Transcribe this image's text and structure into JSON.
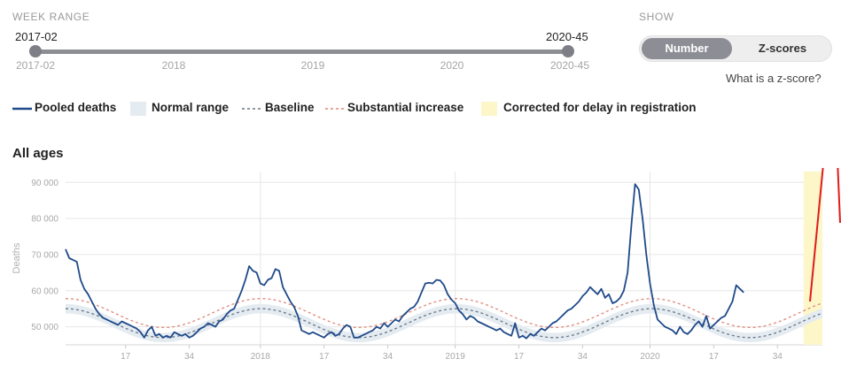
{
  "week_range": {
    "label": "WEEK RANGE",
    "start_value": "2017-02",
    "end_value": "2020-45",
    "ticks": [
      "2017-02",
      "2018",
      "2019",
      "2020",
      "2020-45"
    ]
  },
  "show": {
    "label": "SHOW",
    "options": [
      "Number",
      "Z-scores"
    ],
    "selected": "Number",
    "zscore_link": "What is a z-score?"
  },
  "legend": [
    {
      "label": "Pooled deaths",
      "style": "line",
      "color": "#1f4a8a"
    },
    {
      "label": "Normal range",
      "style": "band",
      "color": "#e4ebf1"
    },
    {
      "label": "Baseline",
      "style": "dotted",
      "color": "#6a7585"
    },
    {
      "label": "Substantial increase",
      "style": "dotted",
      "color": "#e0887a"
    },
    {
      "label": "Corrected for delay in registration",
      "style": "band",
      "color": "#fdf6c9"
    }
  ],
  "chart_data": {
    "type": "line",
    "title": "All ages",
    "ylabel": "Deaths",
    "xlabel": "",
    "ylim": [
      45000,
      93000
    ],
    "week_range": [
      1,
      203
    ],
    "y_ticks": [
      50000,
      60000,
      70000,
      80000,
      90000
    ],
    "y_tick_labels": [
      "50 000",
      "60 000",
      "70 000",
      "80 000",
      "90 000"
    ],
    "x_ticks": [
      {
        "week": 17,
        "label": "17"
      },
      {
        "week": 34,
        "label": "34"
      },
      {
        "week": 53,
        "label": "2018"
      },
      {
        "week": 70,
        "label": "17"
      },
      {
        "week": 87,
        "label": "34"
      },
      {
        "week": 105,
        "label": "2019"
      },
      {
        "week": 122,
        "label": "17"
      },
      {
        "week": 139,
        "label": "34"
      },
      {
        "week": 157,
        "label": "2020"
      },
      {
        "week": 174,
        "label": "17"
      },
      {
        "week": 191,
        "label": "34"
      }
    ],
    "grid": true,
    "correction_band": [
      198,
      203
    ],
    "colors": {
      "pooled": "#1f4a8a",
      "baseline": "#6a7585",
      "substantial": "#e0887a",
      "normal_range": "#e4ebf1",
      "correction": "#fdf6c9",
      "annotation": "#e01c1c"
    },
    "pooled_deaths": [
      [
        1,
        71500
      ],
      [
        2,
        69000
      ],
      [
        3,
        68500
      ],
      [
        4,
        68000
      ],
      [
        5,
        63000
      ],
      [
        6,
        60500
      ],
      [
        7,
        59000
      ],
      [
        8,
        57000
      ],
      [
        9,
        55000
      ],
      [
        10,
        53500
      ],
      [
        11,
        52500
      ],
      [
        12,
        52000
      ],
      [
        13,
        51500
      ],
      [
        14,
        51000
      ],
      [
        15,
        50500
      ],
      [
        16,
        51500
      ],
      [
        17,
        51000
      ],
      [
        18,
        50500
      ],
      [
        19,
        50000
      ],
      [
        20,
        49500
      ],
      [
        21,
        48500
      ],
      [
        22,
        47000
      ],
      [
        23,
        49000
      ],
      [
        24,
        50000
      ],
      [
        25,
        47500
      ],
      [
        26,
        48000
      ],
      [
        27,
        47000
      ],
      [
        28,
        47500
      ],
      [
        29,
        47000
      ],
      [
        30,
        48500
      ],
      [
        31,
        48000
      ],
      [
        32,
        47500
      ],
      [
        33,
        48000
      ],
      [
        34,
        47000
      ],
      [
        35,
        47500
      ],
      [
        36,
        48500
      ],
      [
        37,
        49500
      ],
      [
        38,
        50000
      ],
      [
        39,
        51000
      ],
      [
        40,
        50500
      ],
      [
        41,
        50000
      ],
      [
        42,
        51500
      ],
      [
        43,
        52000
      ],
      [
        44,
        53500
      ],
      [
        45,
        54500
      ],
      [
        46,
        55000
      ],
      [
        47,
        57500
      ],
      [
        48,
        60000
      ],
      [
        49,
        63000
      ],
      [
        50,
        66800
      ],
      [
        51,
        65500
      ],
      [
        52,
        65000
      ],
      [
        53,
        62000
      ],
      [
        54,
        61500
      ],
      [
        55,
        63000
      ],
      [
        56,
        63500
      ],
      [
        57,
        66000
      ],
      [
        58,
        65500
      ],
      [
        59,
        61000
      ],
      [
        60,
        59000
      ],
      [
        61,
        57000
      ],
      [
        62,
        55500
      ],
      [
        63,
        53000
      ],
      [
        64,
        49000
      ],
      [
        65,
        48500
      ],
      [
        66,
        48000
      ],
      [
        67,
        48500
      ],
      [
        68,
        48000
      ],
      [
        69,
        47500
      ],
      [
        70,
        47000
      ],
      [
        71,
        48000
      ],
      [
        72,
        48500
      ],
      [
        73,
        47500
      ],
      [
        74,
        48000
      ],
      [
        75,
        49500
      ],
      [
        76,
        50500
      ],
      [
        77,
        50000
      ],
      [
        78,
        47000
      ],
      [
        79,
        47000
      ],
      [
        80,
        47500
      ],
      [
        81,
        48000
      ],
      [
        82,
        48500
      ],
      [
        83,
        49000
      ],
      [
        84,
        50000
      ],
      [
        85,
        49500
      ],
      [
        86,
        51000
      ],
      [
        87,
        50000
      ],
      [
        88,
        51000
      ],
      [
        89,
        52000
      ],
      [
        90,
        51500
      ],
      [
        91,
        53000
      ],
      [
        92,
        54000
      ],
      [
        93,
        55000
      ],
      [
        94,
        55500
      ],
      [
        95,
        57000
      ],
      [
        96,
        59500
      ],
      [
        97,
        62000
      ],
      [
        98,
        62200
      ],
      [
        99,
        62000
      ],
      [
        100,
        63000
      ],
      [
        101,
        62800
      ],
      [
        102,
        61500
      ],
      [
        103,
        59000
      ],
      [
        104,
        57500
      ],
      [
        105,
        56500
      ],
      [
        106,
        54500
      ],
      [
        107,
        53500
      ],
      [
        108,
        52000
      ],
      [
        109,
        53000
      ],
      [
        110,
        52500
      ],
      [
        111,
        51500
      ],
      [
        112,
        51000
      ],
      [
        113,
        50500
      ],
      [
        114,
        50000
      ],
      [
        115,
        49500
      ],
      [
        116,
        49000
      ],
      [
        117,
        49500
      ],
      [
        118,
        48500
      ],
      [
        119,
        48000
      ],
      [
        120,
        47500
      ],
      [
        121,
        51000
      ],
      [
        122,
        47000
      ],
      [
        123,
        47500
      ],
      [
        124,
        46800
      ],
      [
        125,
        48000
      ],
      [
        126,
        47500
      ],
      [
        127,
        48500
      ],
      [
        128,
        49500
      ],
      [
        129,
        49000
      ],
      [
        130,
        50000
      ],
      [
        131,
        51000
      ],
      [
        132,
        51500
      ],
      [
        133,
        52500
      ],
      [
        134,
        53500
      ],
      [
        135,
        54500
      ],
      [
        136,
        55000
      ],
      [
        137,
        56000
      ],
      [
        138,
        57000
      ],
      [
        139,
        58500
      ],
      [
        140,
        59500
      ],
      [
        141,
        61000
      ],
      [
        142,
        60000
      ],
      [
        143,
        59000
      ],
      [
        144,
        60500
      ],
      [
        145,
        58000
      ],
      [
        146,
        59000
      ],
      [
        147,
        56500
      ],
      [
        148,
        57000
      ],
      [
        149,
        58000
      ],
      [
        150,
        60000
      ],
      [
        151,
        65000
      ],
      [
        152,
        78000
      ],
      [
        153,
        89500
      ],
      [
        154,
        88000
      ],
      [
        155,
        80000
      ],
      [
        156,
        70000
      ],
      [
        157,
        62000
      ],
      [
        158,
        56000
      ],
      [
        159,
        52000
      ],
      [
        160,
        51000
      ],
      [
        161,
        50000
      ],
      [
        162,
        49500
      ],
      [
        163,
        49000
      ],
      [
        164,
        48000
      ],
      [
        165,
        50000
      ],
      [
        166,
        48500
      ],
      [
        167,
        48000
      ],
      [
        168,
        49000
      ],
      [
        169,
        50500
      ],
      [
        170,
        51500
      ],
      [
        171,
        50000
      ],
      [
        172,
        53000
      ],
      [
        173,
        49500
      ],
      [
        174,
        50500
      ],
      [
        175,
        51500
      ],
      [
        176,
        52500
      ],
      [
        177,
        53000
      ],
      [
        178,
        55000
      ],
      [
        179,
        57000
      ],
      [
        180,
        61500
      ],
      [
        181,
        60500
      ],
      [
        182,
        59500
      ]
    ]
  }
}
